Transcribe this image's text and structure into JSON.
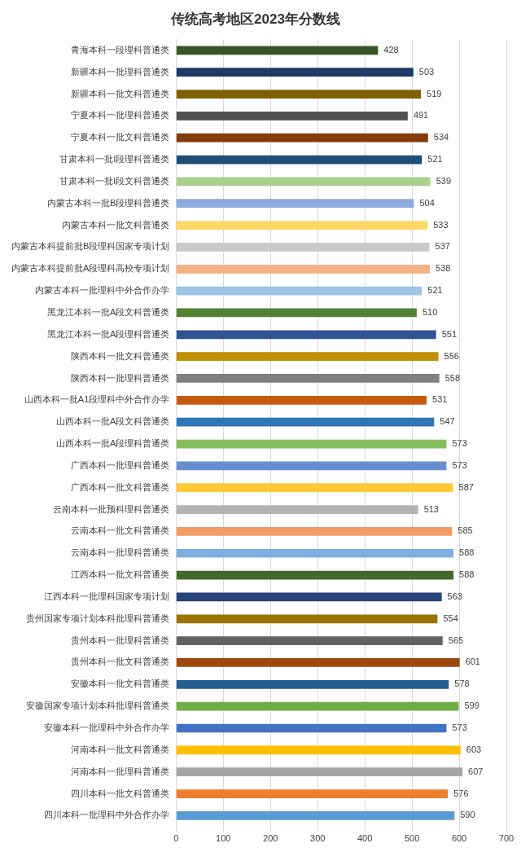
{
  "chart_data": {
    "type": "bar",
    "orientation": "horizontal",
    "title": "传统高考地区2023年分数线",
    "categories": [
      "青海本科一段理科普通类",
      "新疆本科一批理科普通类",
      "新疆本科一批文科普通类",
      "宁夏本科一批理科普通类",
      "宁夏本科一批文科普通类",
      "甘肃本科一批I段理科普通类",
      "甘肃本科一批I段文科普通类",
      "内蒙古本科一批B段理科普通类",
      "内蒙古本科一批文科普通类",
      "内蒙古本科提前批B段理科国家专项计划",
      "内蒙古本科提前批A段理科高校专项计划",
      "内蒙古本科一批理科中外合作办学",
      "黑龙江本科一批A段文科普通类",
      "黑龙江本科一批A段理科普通类",
      "陕西本科一批文科普通类",
      "陕西本科一批理科普通类",
      "山西本科一批A1段理科中外合作办学",
      "山西本科一批A段文科普通类",
      "山西本科一批A段理科普通类",
      "广西本科一批理科普通类",
      "广西本科一批文科普通类",
      "云南本科一批预科理科普通类",
      "云南本科一批文科普通类",
      "云南本科一批理科普通类",
      "江西本科一批文科普通类",
      "江西本科一批理科国家专项计划",
      "贵州国家专项计划本科批理科普通类",
      "贵州本科一批理科普通类",
      "贵州本科一批文科普通类",
      "安徽本科一批文科普通类",
      "安徽国家专项计划本科批理科普通类",
      "安徽本科一批理科中外合作办学",
      "河南本科一批文科普通类",
      "河南本科一批理科普通类",
      "四川本科一批文科普通类",
      "四川本科一批理科中外合作办学"
    ],
    "values": [
      428,
      503,
      519,
      491,
      534,
      521,
      539,
      504,
      533,
      537,
      538,
      521,
      510,
      551,
      556,
      558,
      531,
      547,
      573,
      573,
      587,
      513,
      585,
      588,
      588,
      563,
      554,
      565,
      601,
      578,
      599,
      573,
      603,
      607,
      576,
      590
    ],
    "colors": [
      "#375623",
      "#1f3864",
      "#7f6000",
      "#525252",
      "#843c0c",
      "#1f4e79",
      "#a9d18e",
      "#8faadc",
      "#ffd966",
      "#c9c9c9",
      "#f4b183",
      "#9dc3e6",
      "#548235",
      "#2f5597",
      "#bf9000",
      "#7f7f7f",
      "#c55a11",
      "#2e75b6",
      "#86bd5c",
      "#698ed0",
      "#ffc935",
      "#b4b4b4",
      "#f19c65",
      "#7cafdd",
      "#43682b",
      "#264478",
      "#997300",
      "#636363",
      "#9e480e",
      "#255e91",
      "#70ad47",
      "#4472c4",
      "#ffc000",
      "#a5a5a5",
      "#ed7d31",
      "#5b9bd5"
    ],
    "xlim": [
      0,
      700
    ],
    "xticks": [
      0,
      100,
      200,
      300,
      400,
      500,
      600,
      700
    ],
    "grid": "x",
    "data_labels": true,
    "legend": false
  }
}
